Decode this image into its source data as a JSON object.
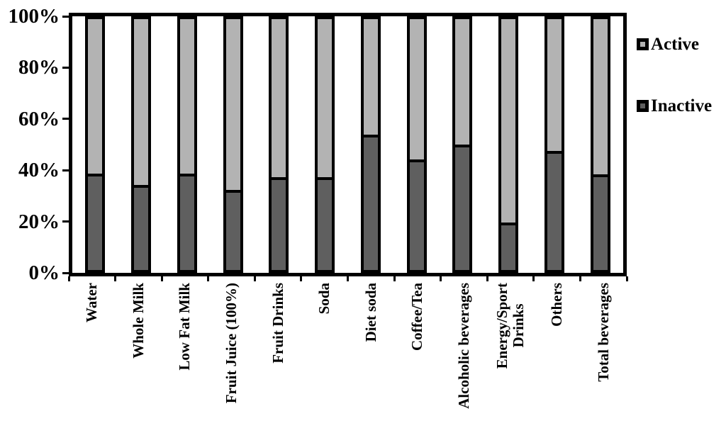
{
  "chart_data": {
    "type": "bar",
    "subtype": "stacked-100-percent-column",
    "title": "",
    "xlabel": "",
    "ylabel": "",
    "grid": false,
    "ylim": [
      0,
      100
    ],
    "yticks": [
      "100%",
      "80%",
      "60%",
      "40%",
      "20%",
      "0%"
    ],
    "ytick_values": [
      100,
      80,
      60,
      40,
      20,
      0
    ],
    "categories": [
      "Water",
      "Whole Milk",
      "Low Fat Milk",
      "Fruit Juice (100%)",
      "Fruit Drinks",
      "Soda",
      "Diet soda",
      "Coffee/Tea",
      "Alcoholic beverages",
      "Energy/Sport\nDrinks",
      "Others",
      "Total beverages"
    ],
    "series": [
      {
        "name": "Inactive",
        "stack_position": "bottom",
        "color": "#5f5f5f",
        "values": [
          38.5,
          34,
          38.5,
          32,
          37,
          37,
          54,
          44,
          50,
          19,
          47.5,
          38
        ]
      },
      {
        "name": "Active",
        "stack_position": "top",
        "color": "#b3b3b3",
        "values": [
          61.5,
          66,
          61.5,
          68,
          63,
          63,
          46,
          56,
          50,
          81,
          52.5,
          62
        ]
      }
    ],
    "legend": {
      "position": "right",
      "entries": [
        "Active",
        "Inactive"
      ]
    },
    "colors": {
      "outline": "#000000",
      "background": "#ffffff",
      "text": "#000000"
    }
  }
}
